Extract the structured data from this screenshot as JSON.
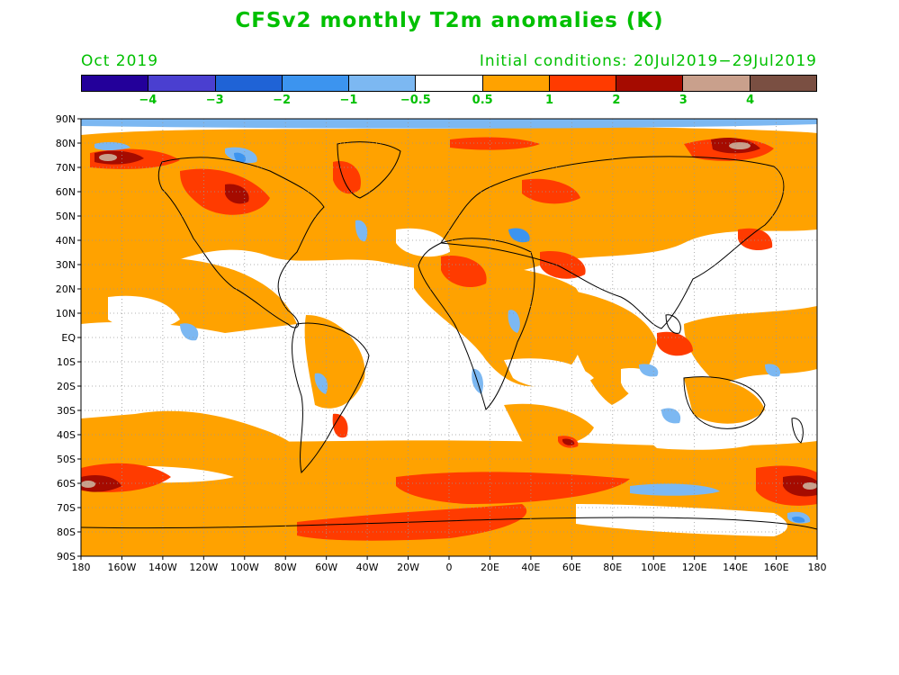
{
  "title": "CFSv2 monthly T2m anomalies (K)",
  "valid_time": "Oct 2019",
  "initial_conditions": "Initial conditions: 20Jul2019−29Jul2019",
  "text_color": "#00c000",
  "colorbar": {
    "colors": [
      "#23009a",
      "#4a3fd0",
      "#1f63d6",
      "#3c94ef",
      "#7cb8f2",
      "#ffffff",
      "#ffa200",
      "#ff3b00",
      "#a50b00",
      "#c9a08c",
      "#7a4f42"
    ],
    "labels": [
      "−4",
      "−3",
      "−2",
      "−1",
      "−0.5",
      "0.5",
      "1",
      "2",
      "3",
      "4"
    ]
  },
  "y_axis_labels": [
    "90N",
    "80N",
    "70N",
    "60N",
    "50N",
    "40N",
    "30N",
    "20N",
    "10N",
    "EQ",
    "10S",
    "20S",
    "30S",
    "40S",
    "50S",
    "60S",
    "70S",
    "80S",
    "90S"
  ],
  "x_axis_labels": [
    "180",
    "160W",
    "140W",
    "120W",
    "100W",
    "80W",
    "60W",
    "40W",
    "20W",
    "0",
    "20E",
    "40E",
    "60E",
    "80E",
    "100E",
    "120E",
    "140E",
    "160E",
    "180"
  ]
}
